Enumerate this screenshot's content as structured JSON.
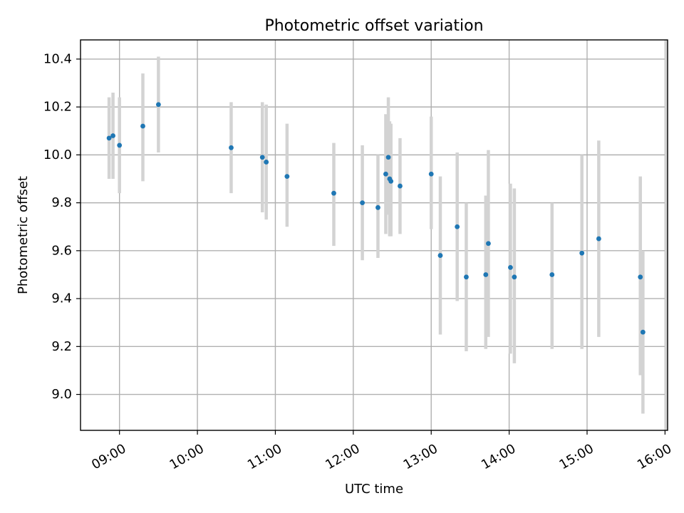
{
  "chart_data": {
    "type": "scatter",
    "title": "Photometric offset variation",
    "xlabel": "UTC time",
    "ylabel": "Photometric offset",
    "x_type": "time",
    "xlim": [
      "08:30",
      "16:00"
    ],
    "ylim": [
      8.85,
      10.48
    ],
    "x_ticks": [
      "09:00",
      "10:00",
      "11:00",
      "12:00",
      "13:00",
      "14:00",
      "15:00",
      "16:00"
    ],
    "y_ticks": [
      "9.0",
      "9.2",
      "9.4",
      "9.6",
      "9.8",
      "10.0",
      "10.2",
      "10.4"
    ],
    "grid": true,
    "marker_color": "#1f77b4",
    "errorbar_color": "#d3d3d3",
    "points": [
      {
        "time": "08:52",
        "y": 10.07,
        "lo": 9.9,
        "hi": 10.24
      },
      {
        "time": "08:55",
        "y": 10.08,
        "lo": 9.9,
        "hi": 10.26
      },
      {
        "time": "09:00",
        "y": 10.04,
        "lo": 9.84,
        "hi": 10.24
      },
      {
        "time": "09:18",
        "y": 10.12,
        "lo": 9.89,
        "hi": 10.34
      },
      {
        "time": "09:30",
        "y": 10.21,
        "lo": 10.01,
        "hi": 10.41
      },
      {
        "time": "10:26",
        "y": 10.03,
        "lo": 9.84,
        "hi": 10.22
      },
      {
        "time": "10:50",
        "y": 9.99,
        "lo": 9.76,
        "hi": 10.22
      },
      {
        "time": "10:53",
        "y": 9.97,
        "lo": 9.73,
        "hi": 10.21
      },
      {
        "time": "11:09",
        "y": 9.91,
        "lo": 9.7,
        "hi": 10.13
      },
      {
        "time": "11:45",
        "y": 9.84,
        "lo": 9.62,
        "hi": 10.05
      },
      {
        "time": "12:07",
        "y": 9.8,
        "lo": 9.56,
        "hi": 10.04
      },
      {
        "time": "12:19",
        "y": 9.78,
        "lo": 9.57,
        "hi": 10.0
      },
      {
        "time": "12:25",
        "y": 9.92,
        "lo": 9.67,
        "hi": 10.17
      },
      {
        "time": "12:27",
        "y": 9.99,
        "lo": 9.75,
        "hi": 10.24
      },
      {
        "time": "12:28",
        "y": 9.9,
        "lo": 9.66,
        "hi": 10.14
      },
      {
        "time": "12:29",
        "y": 9.89,
        "lo": 9.66,
        "hi": 10.13
      },
      {
        "time": "12:36",
        "y": 9.87,
        "lo": 9.67,
        "hi": 10.07
      },
      {
        "time": "13:00",
        "y": 9.92,
        "lo": 9.69,
        "hi": 10.16
      },
      {
        "time": "13:07",
        "y": 9.58,
        "lo": 9.25,
        "hi": 9.91
      },
      {
        "time": "13:20",
        "y": 9.7,
        "lo": 9.39,
        "hi": 10.01
      },
      {
        "time": "13:27",
        "y": 9.49,
        "lo": 9.18,
        "hi": 9.8
      },
      {
        "time": "13:42",
        "y": 9.5,
        "lo": 9.19,
        "hi": 9.83
      },
      {
        "time": "13:44",
        "y": 9.63,
        "lo": 9.24,
        "hi": 10.02
      },
      {
        "time": "14:01",
        "y": 9.53,
        "lo": 9.17,
        "hi": 9.88
      },
      {
        "time": "14:04",
        "y": 9.49,
        "lo": 9.13,
        "hi": 9.86
      },
      {
        "time": "14:33",
        "y": 9.5,
        "lo": 9.19,
        "hi": 9.8
      },
      {
        "time": "14:56",
        "y": 9.59,
        "lo": 9.19,
        "hi": 10.0
      },
      {
        "time": "15:09",
        "y": 9.65,
        "lo": 9.24,
        "hi": 10.06
      },
      {
        "time": "15:41",
        "y": 9.49,
        "lo": 9.08,
        "hi": 9.91
      },
      {
        "time": "15:43",
        "y": 9.26,
        "lo": 8.92,
        "hi": 9.6
      },
      {
        "time": "16:01",
        "y": null,
        "lo": 8.85,
        "hi": 10.48
      }
    ]
  }
}
